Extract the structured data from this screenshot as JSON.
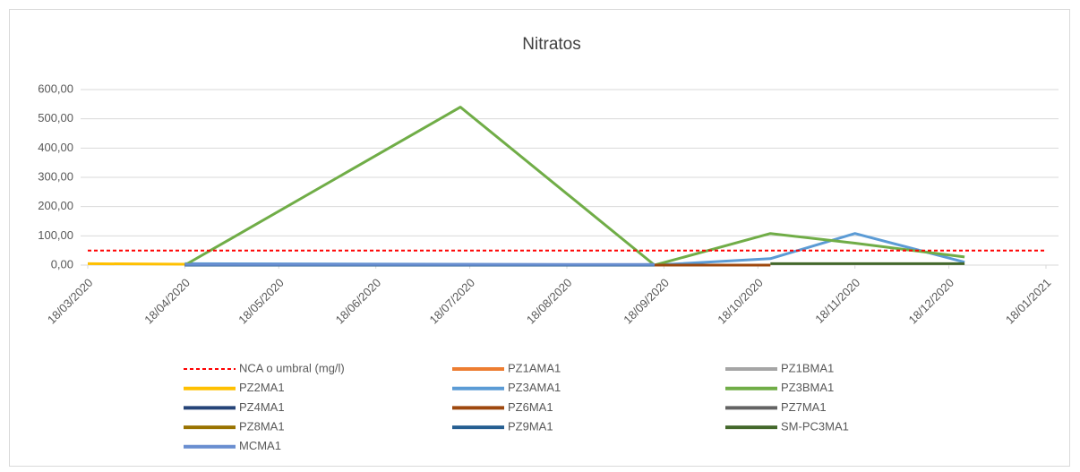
{
  "chart_data": {
    "type": "line",
    "title": "Nitratos",
    "x": [
      "2020-03-18",
      "2020-04-18",
      "2020-07-15",
      "2020-09-15",
      "2020-10-22",
      "2020-11-18",
      "2020-12-23",
      "2021-01-18"
    ],
    "xlim": [
      "2020-03-18",
      "2021-01-18"
    ],
    "xticks": [
      {
        "value": "2020-03-18",
        "label": "18/03/2020"
      },
      {
        "value": "2020-04-18",
        "label": "18/04/2020"
      },
      {
        "value": "2020-05-18",
        "label": "18/05/2020"
      },
      {
        "value": "2020-06-18",
        "label": "18/06/2020"
      },
      {
        "value": "2020-07-18",
        "label": "18/07/2020"
      },
      {
        "value": "2020-08-18",
        "label": "18/08/2020"
      },
      {
        "value": "2020-09-18",
        "label": "18/09/2020"
      },
      {
        "value": "2020-10-18",
        "label": "18/10/2020"
      },
      {
        "value": "2020-11-18",
        "label": "18/11/2020"
      },
      {
        "value": "2020-12-18",
        "label": "18/12/2020"
      },
      {
        "value": "2021-01-18",
        "label": "18/01/2021"
      }
    ],
    "ylim": [
      0,
      600
    ],
    "yticks": [
      {
        "value": 0,
        "label": "0,00"
      },
      {
        "value": 100,
        "label": "100,00"
      },
      {
        "value": 200,
        "label": "200,00"
      },
      {
        "value": 300,
        "label": "300,00"
      },
      {
        "value": 400,
        "label": "400,00"
      },
      {
        "value": 500,
        "label": "500,00"
      },
      {
        "value": 600,
        "label": "600,00"
      }
    ],
    "grid": true,
    "legend": "bottom",
    "series": [
      {
        "name": "NCA o umbral (mg/l)",
        "color": "#ff0000",
        "dashed": true,
        "values": [
          50,
          50,
          50,
          50,
          50,
          50,
          50,
          50
        ]
      },
      {
        "name": "PZ1AMA1",
        "color": "#ed7d31",
        "values": [
          null,
          0,
          0,
          0,
          null,
          null,
          null,
          null
        ]
      },
      {
        "name": "PZ1BMA1",
        "color": "#a5a5a5",
        "values": [
          null,
          0,
          0,
          0,
          null,
          null,
          null,
          null
        ]
      },
      {
        "name": "PZ2MA1",
        "color": "#ffc000",
        "values": [
          5,
          3,
          null,
          null,
          null,
          null,
          null,
          null
        ]
      },
      {
        "name": "PZ3AMA1",
        "color": "#5b9bd5",
        "values": [
          null,
          5,
          3,
          0,
          22,
          108,
          10,
          null
        ]
      },
      {
        "name": "PZ3BMA1",
        "color": "#70ad47",
        "values": [
          null,
          0,
          540,
          0,
          108,
          75,
          28,
          null
        ]
      },
      {
        "name": "PZ4MA1",
        "color": "#264478",
        "values": [
          null,
          0,
          0,
          0,
          null,
          null,
          null,
          null
        ]
      },
      {
        "name": "PZ6MA1",
        "color": "#9e480e",
        "values": [
          null,
          0,
          0,
          0,
          0,
          null,
          null,
          null
        ]
      },
      {
        "name": "PZ7MA1",
        "color": "#636363",
        "values": [
          null,
          0,
          0,
          0,
          null,
          null,
          null,
          null
        ]
      },
      {
        "name": "PZ8MA1",
        "color": "#997300",
        "values": [
          null,
          0,
          0,
          0,
          null,
          null,
          null,
          null
        ]
      },
      {
        "name": "PZ9MA1",
        "color": "#255e91",
        "values": [
          null,
          0,
          0,
          0,
          null,
          null,
          null,
          null
        ]
      },
      {
        "name": "SM-PC3MA1",
        "color": "#43682b",
        "values": [
          null,
          null,
          null,
          null,
          5,
          5,
          5,
          null
        ]
      },
      {
        "name": "MCMA1",
        "color": "#698ed0",
        "values": [
          null,
          2,
          2,
          2,
          null,
          null,
          null,
          null
        ]
      }
    ]
  }
}
